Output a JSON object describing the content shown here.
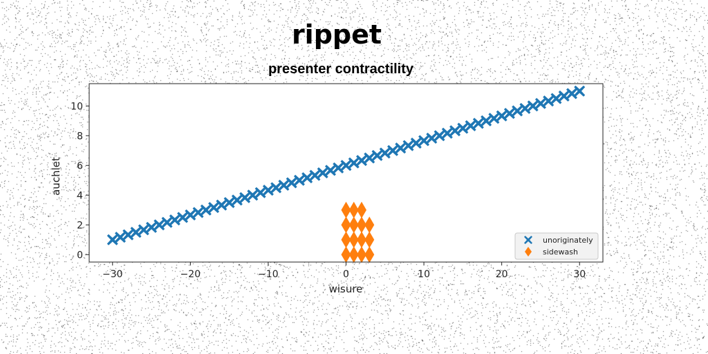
{
  "chart_data": {
    "type": "scatter",
    "title": "rippet",
    "subtitle": "presenter contractility",
    "xlabel": "wisure",
    "ylabel": "auchlet",
    "xlim": [
      -33,
      33
    ],
    "ylim": [
      -0.5,
      11.5
    ],
    "xticks": [
      -30,
      -20,
      -10,
      0,
      10,
      20,
      30
    ],
    "xtick_labels": [
      "−30",
      "−20",
      "−10",
      "0",
      "10",
      "20",
      "30"
    ],
    "yticks": [
      0,
      2,
      4,
      6,
      8,
      10
    ],
    "ytick_labels": [
      "0",
      "2",
      "4",
      "6",
      "8",
      "10"
    ],
    "grid": false,
    "legend_position": "lower-right",
    "series": [
      {
        "name": "unoriginately",
        "marker": "X",
        "color": "#1f77b4",
        "x_start": -30,
        "x_end": 30,
        "x_step": 1,
        "y_start": 1,
        "y_end": 11
      },
      {
        "name": "sidewash",
        "marker": "diamond",
        "color": "#ff7f0e",
        "points": [
          [
            0,
            0
          ],
          [
            0,
            1
          ],
          [
            0,
            2
          ],
          [
            0,
            3
          ],
          [
            1,
            0
          ],
          [
            1,
            1
          ],
          [
            1,
            2
          ],
          [
            1,
            3
          ],
          [
            2,
            0
          ],
          [
            2,
            1
          ],
          [
            2,
            2
          ],
          [
            2,
            3
          ],
          [
            3,
            0
          ],
          [
            3,
            1
          ],
          [
            3,
            2
          ]
        ]
      }
    ]
  }
}
